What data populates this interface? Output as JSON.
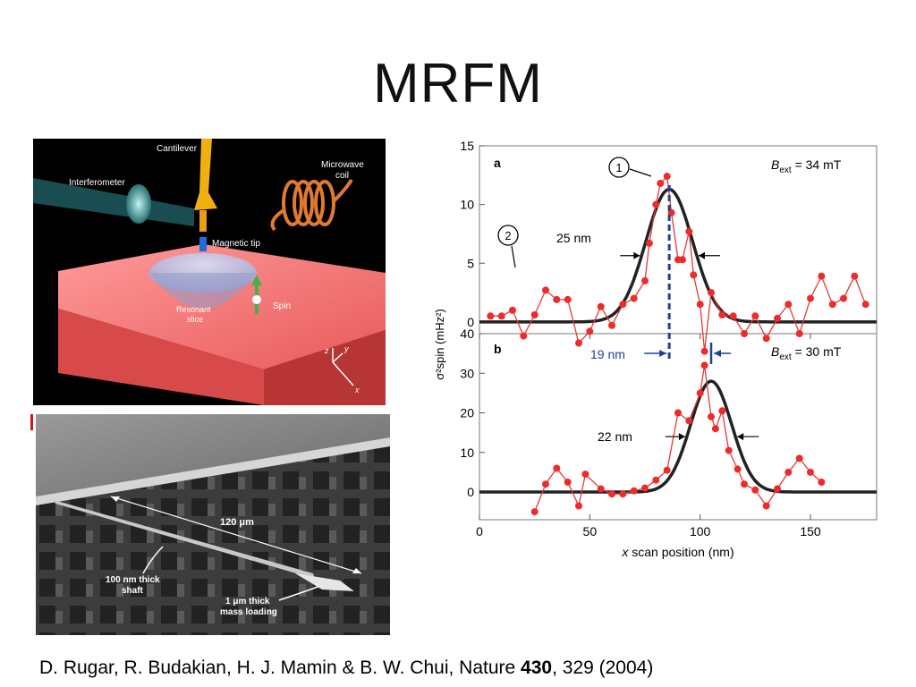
{
  "title": "MRFM",
  "schematic": {
    "labels": {
      "cantilever": "Cantilever",
      "interferometer": "Interferometer",
      "microwave_coil_1": "Microwave",
      "microwave_coil_2": "coil",
      "magnetic_tip": "Magnetic tip",
      "resonant_slice_1": "Resonant",
      "resonant_slice_2": "slice",
      "spin": "Spin",
      "axis_z": "z",
      "axis_y": "y",
      "axis_x": "x"
    }
  },
  "sem": {
    "length_label": "120 μm",
    "shaft_label_1": "100 nm thick",
    "shaft_label_2": "shaft",
    "mass_label_1": "1 μm thick",
    "mass_label_2": "mass loading"
  },
  "citation": {
    "prefix": "D. Rugar, R. Budakian, H. J. Mamin & B. W. Chui, Nature ",
    "volume": "430",
    "suffix": ", 329 (2004)"
  },
  "chart_data": [
    {
      "panel": "a",
      "type": "scatter",
      "annotation_text": "B",
      "annotation_sub": "ext",
      "annotation_value": " = 34 mT",
      "ylabel": "σ²spin (mHz²)",
      "ylim": [
        -1,
        15
      ],
      "yticks": [
        0,
        5,
        10,
        15
      ],
      "xlim": [
        0,
        180
      ],
      "width_label": "25 nm",
      "markers": [
        "1",
        "2"
      ],
      "points_x": [
        5,
        10,
        15,
        20,
        25,
        30,
        35,
        40,
        45,
        50,
        55,
        60,
        65,
        70,
        75,
        77,
        80,
        82,
        85,
        87,
        90,
        92,
        95,
        97,
        100,
        102,
        105,
        110,
        115,
        120,
        125,
        130,
        135,
        140,
        145,
        150,
        155,
        160,
        165,
        170,
        175
      ],
      "points_y": [
        0.5,
        0.5,
        1.0,
        -1.2,
        0.6,
        2.7,
        1.9,
        1.9,
        -1.8,
        -0.8,
        1.3,
        -0.3,
        1.5,
        2.0,
        3.5,
        6.7,
        10.0,
        11.8,
        12.4,
        9.3,
        5.3,
        5.3,
        7.7,
        4.0,
        1.5,
        -2.5,
        2.5,
        0.6,
        0.5,
        -1.0,
        0.5,
        -1.4,
        0.3,
        1.5,
        -1.0,
        2.0,
        3.9,
        1.5,
        2.0,
        3.9,
        1.5
      ],
      "fit": {
        "center": 86,
        "amplitude": 11.3,
        "fwhm": 25
      }
    },
    {
      "panel": "b",
      "type": "scatter",
      "annotation_text": "B",
      "annotation_sub": "ext",
      "annotation_value": " = 30 mT",
      "ylim": [
        -7,
        40
      ],
      "yticks": [
        0,
        10,
        20,
        30,
        40
      ],
      "xlim": [
        0,
        180
      ],
      "xticks": [
        0,
        50,
        100,
        150
      ],
      "xlabel_italic": "x",
      "xlabel_rest": " scan position (nm)",
      "width_label": "22 nm",
      "separation_label": "19 nm",
      "points_x": [
        25,
        30,
        35,
        40,
        45,
        48,
        55,
        60,
        65,
        70,
        75,
        80,
        85,
        90,
        95,
        100,
        102,
        105,
        107,
        110,
        113,
        117,
        120,
        125,
        130,
        135,
        140,
        145,
        150,
        155
      ],
      "points_y": [
        -5.0,
        2.0,
        6.0,
        2.5,
        -3.5,
        4.5,
        0.8,
        -0.5,
        -0.5,
        0.3,
        1.0,
        3.0,
        5.5,
        20.0,
        18.0,
        25.0,
        32.0,
        19.0,
        16.0,
        20.5,
        10.5,
        5.8,
        2.0,
        0.5,
        -3.5,
        0.8,
        5.0,
        8.5,
        5.0,
        2.5
      ],
      "fit": {
        "center": 105,
        "amplitude": 28,
        "fwhm": 22
      }
    }
  ]
}
